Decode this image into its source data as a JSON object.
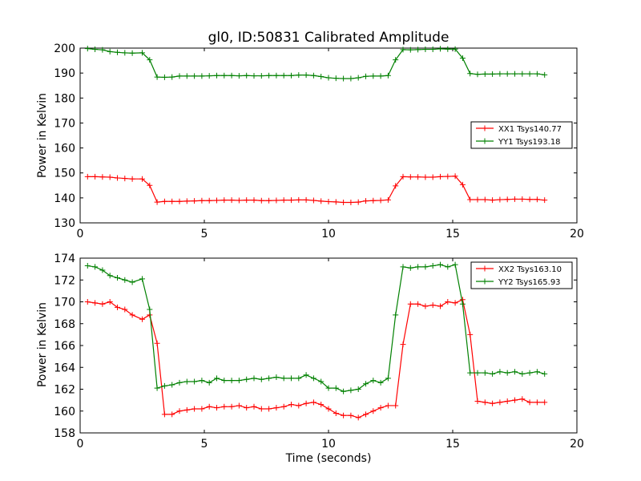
{
  "chart_data": [
    {
      "type": "line",
      "title": "gl0, ID:50831 Calibrated Amplitude",
      "xlabel": "",
      "ylabel": "Power in Kelvin",
      "xlim": [
        0,
        20
      ],
      "ylim": [
        130,
        200
      ],
      "xticks": [
        0,
        5,
        10,
        15,
        20
      ],
      "yticks": [
        130,
        140,
        150,
        160,
        170,
        180,
        190,
        200
      ],
      "grid": false,
      "legend_position": "center-right",
      "x": [
        0.3,
        0.6,
        0.9,
        1.2,
        1.5,
        1.8,
        2.1,
        2.5,
        2.8,
        3.1,
        3.4,
        3.7,
        4.0,
        4.3,
        4.6,
        4.9,
        5.2,
        5.5,
        5.8,
        6.1,
        6.4,
        6.7,
        7.0,
        7.3,
        7.6,
        7.9,
        8.2,
        8.5,
        8.8,
        9.1,
        9.4,
        9.7,
        10.0,
        10.3,
        10.6,
        10.9,
        11.2,
        11.5,
        11.8,
        12.1,
        12.4,
        12.7,
        13.0,
        13.3,
        13.6,
        13.9,
        14.2,
        14.5,
        14.8,
        15.1,
        15.4,
        15.7,
        16.0,
        16.3,
        16.6,
        16.9,
        17.2,
        17.5,
        17.8,
        18.1,
        18.4,
        18.7
      ],
      "series": [
        {
          "name": "XX1 Tsys140.77",
          "color": "#ff0000",
          "values": [
            148.5,
            148.5,
            148.4,
            148.3,
            148.0,
            147.8,
            147.6,
            147.6,
            145.0,
            138.3,
            138.6,
            138.6,
            138.6,
            138.7,
            138.8,
            138.9,
            138.9,
            139.0,
            139.1,
            139.1,
            139.0,
            139.1,
            139.1,
            138.9,
            138.9,
            139.0,
            139.1,
            139.1,
            139.2,
            139.2,
            139.0,
            138.7,
            138.5,
            138.4,
            138.2,
            138.2,
            138.3,
            138.8,
            138.9,
            139.0,
            139.2,
            144.8,
            148.5,
            148.4,
            148.4,
            148.3,
            148.3,
            148.5,
            148.6,
            148.7,
            145.3,
            139.3,
            139.3,
            139.3,
            139.1,
            139.3,
            139.4,
            139.5,
            139.5,
            139.4,
            139.4,
            139.1
          ]
        },
        {
          "name": "YY1 Tsys193.18",
          "color": "#008000",
          "values": [
            199.8,
            199.5,
            199.3,
            198.6,
            198.3,
            198.1,
            198.0,
            198.1,
            195.3,
            188.4,
            188.3,
            188.4,
            188.8,
            188.8,
            188.8,
            188.8,
            188.9,
            189.0,
            189.0,
            189.0,
            188.9,
            189.0,
            188.9,
            188.9,
            189.0,
            189.0,
            189.0,
            189.0,
            189.2,
            189.2,
            189.0,
            188.6,
            188.1,
            187.9,
            187.8,
            187.8,
            188.1,
            188.7,
            188.8,
            188.8,
            189.0,
            195.3,
            199.4,
            199.3,
            199.4,
            199.5,
            199.5,
            199.7,
            199.6,
            199.6,
            196.0,
            189.8,
            189.5,
            189.6,
            189.6,
            189.7,
            189.7,
            189.7,
            189.7,
            189.7,
            189.7,
            189.3
          ]
        }
      ]
    },
    {
      "type": "line",
      "title": "",
      "xlabel": "Time (seconds)",
      "ylabel": "Power in Kelvin",
      "xlim": [
        0,
        20
      ],
      "ylim": [
        158,
        174
      ],
      "xticks": [
        0,
        5,
        10,
        15,
        20
      ],
      "yticks": [
        158,
        160,
        162,
        164,
        166,
        168,
        170,
        172,
        174
      ],
      "grid": false,
      "legend_position": "top-right",
      "x": [
        0.3,
        0.6,
        0.9,
        1.2,
        1.5,
        1.8,
        2.1,
        2.5,
        2.8,
        3.1,
        3.4,
        3.7,
        4.0,
        4.3,
        4.6,
        4.9,
        5.2,
        5.5,
        5.8,
        6.1,
        6.4,
        6.7,
        7.0,
        7.3,
        7.6,
        7.9,
        8.2,
        8.5,
        8.8,
        9.1,
        9.4,
        9.7,
        10.0,
        10.3,
        10.6,
        10.9,
        11.2,
        11.5,
        11.8,
        12.1,
        12.4,
        12.7,
        13.0,
        13.3,
        13.6,
        13.9,
        14.2,
        14.5,
        14.8,
        15.1,
        15.4,
        15.7,
        16.0,
        16.3,
        16.6,
        16.9,
        17.2,
        17.5,
        17.8,
        18.1,
        18.4,
        18.7
      ],
      "series": [
        {
          "name": "XX2 Tsys163.10",
          "color": "#ff0000",
          "values": [
            170.0,
            169.9,
            169.8,
            170.0,
            169.5,
            169.3,
            168.8,
            168.4,
            168.8,
            166.2,
            159.7,
            159.7,
            160.0,
            160.1,
            160.2,
            160.2,
            160.4,
            160.3,
            160.4,
            160.4,
            160.5,
            160.3,
            160.4,
            160.2,
            160.2,
            160.3,
            160.4,
            160.6,
            160.5,
            160.7,
            160.8,
            160.6,
            160.2,
            159.8,
            159.6,
            159.6,
            159.4,
            159.7,
            160.0,
            160.3,
            160.5,
            160.5,
            166.1,
            169.8,
            169.8,
            169.6,
            169.7,
            169.6,
            170.0,
            169.9,
            170.2,
            167.0,
            160.9,
            160.8,
            160.7,
            160.8,
            160.9,
            161.0,
            161.1,
            160.8,
            160.8,
            160.8
          ]
        },
        {
          "name": "YY2 Tsys165.93",
          "color": "#008000",
          "values": [
            173.3,
            173.2,
            172.9,
            172.4,
            172.2,
            172.0,
            171.8,
            172.1,
            169.3,
            162.1,
            162.3,
            162.4,
            162.6,
            162.7,
            162.7,
            162.8,
            162.6,
            163.0,
            162.8,
            162.8,
            162.8,
            162.9,
            163.0,
            162.9,
            163.0,
            163.1,
            163.0,
            163.0,
            163.0,
            163.3,
            163.0,
            162.7,
            162.1,
            162.1,
            161.8,
            161.9,
            162.0,
            162.5,
            162.8,
            162.6,
            163.0,
            168.8,
            173.2,
            173.1,
            173.2,
            173.2,
            173.3,
            173.4,
            173.2,
            173.4,
            169.8,
            163.5,
            163.5,
            163.5,
            163.4,
            163.6,
            163.5,
            163.6,
            163.4,
            163.5,
            163.6,
            163.4
          ]
        }
      ]
    }
  ]
}
